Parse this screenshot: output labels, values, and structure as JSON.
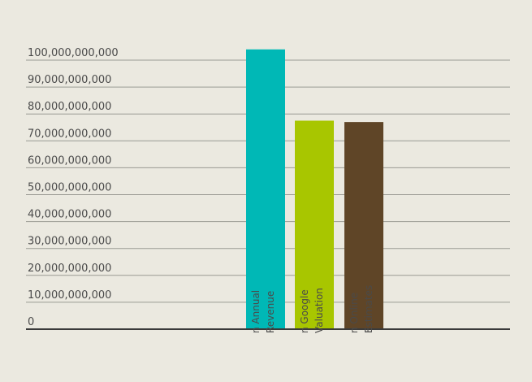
{
  "chart_data": {
    "type": "bar",
    "categories": [
      "...n Annual Revenue",
      "...n Google Valuation",
      "...n Online Estimates"
    ],
    "category_label_lines": [
      [
        "n Annual",
        "Revenue"
      ],
      [
        "n Google",
        "Valuation"
      ],
      [
        "n Online",
        "Estimates"
      ]
    ],
    "values": [
      104000000000,
      77500000000,
      77000000000
    ],
    "colors": [
      "#00b8b6",
      "#a8c600",
      "#5f4527"
    ],
    "ylim": [
      0,
      100000000000
    ],
    "yticks": [
      {
        "value": 0,
        "label": "0"
      },
      {
        "value": 10000000000,
        "label": "10,000,000,000"
      },
      {
        "value": 20000000000,
        "label": "20,000,000,000"
      },
      {
        "value": 30000000000,
        "label": "30,000,000,000"
      },
      {
        "value": 40000000000,
        "label": "40,000,000,000"
      },
      {
        "value": 50000000000,
        "label": "50,000,000,000"
      },
      {
        "value": 60000000000,
        "label": "60,000,000,000"
      },
      {
        "value": 70000000000,
        "label": "70,000,000,000"
      },
      {
        "value": 80000000000,
        "label": "80,000,000,000"
      },
      {
        "value": 90000000000,
        "label": "90,000,000,000"
      },
      {
        "value": 100000000000,
        "label": "100,000,000,000"
      }
    ],
    "grid": true,
    "title": "",
    "xlabel": "",
    "ylabel": ""
  }
}
